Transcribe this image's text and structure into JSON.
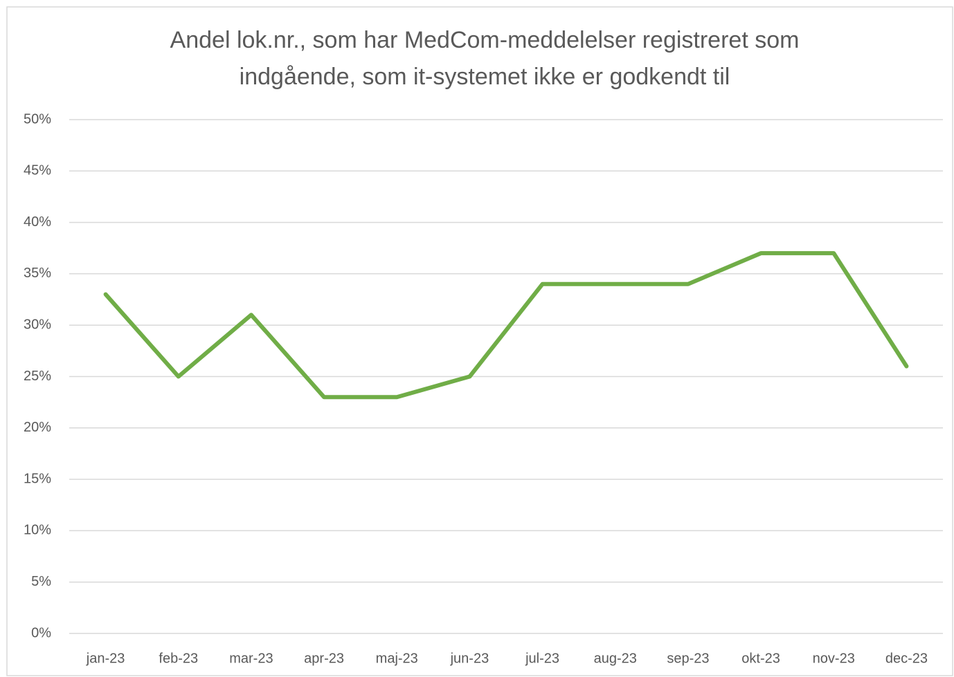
{
  "chart_data": {
    "type": "line",
    "title": [
      "Andel lok.nr., som har MedCom-meddelelser registreret som",
      "indgående, som it-systemet ikke er godkendt til"
    ],
    "categories": [
      "jan-23",
      "feb-23",
      "mar-23",
      "apr-23",
      "maj-23",
      "jun-23",
      "jul-23",
      "aug-23",
      "sep-23",
      "okt-23",
      "nov-23",
      "dec-23"
    ],
    "values": [
      33,
      25,
      31,
      23,
      23,
      25,
      34,
      34,
      34,
      37,
      37,
      26
    ],
    "color": "#70ad47",
    "ylim": [
      0,
      50
    ],
    "yticks": [
      {
        "value": 0,
        "label": "0%"
      },
      {
        "value": 5,
        "label": "5%"
      },
      {
        "value": 10,
        "label": "10%"
      },
      {
        "value": 15,
        "label": "15%"
      },
      {
        "value": 20,
        "label": "20%"
      },
      {
        "value": 25,
        "label": "25%"
      },
      {
        "value": 30,
        "label": "30%"
      },
      {
        "value": 35,
        "label": "35%"
      },
      {
        "value": 40,
        "label": "40%"
      },
      {
        "value": 45,
        "label": "45%"
      },
      {
        "value": 50,
        "label": "50%"
      }
    ],
    "grid": true
  }
}
